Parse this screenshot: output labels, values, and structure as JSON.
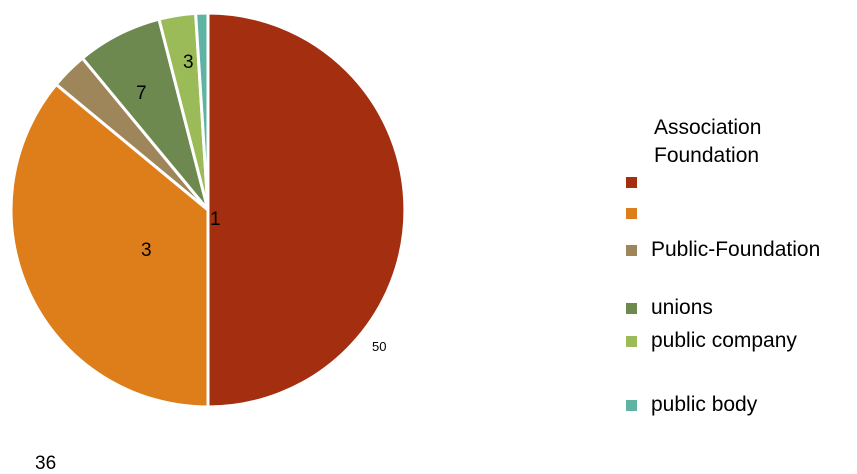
{
  "chart_data": {
    "type": "pie",
    "categories": [
      "",
      "",
      "Public-Foundation",
      "unions",
      "public company",
      "public body"
    ],
    "values": [
      50,
      36,
      3,
      7,
      3,
      1
    ],
    "colors": [
      "#a42e10",
      "#dd7e1a",
      "#9f855a",
      "#6e8950",
      "#9bbb59",
      "#5fb3a3"
    ],
    "legend_header": [
      "Association",
      "Foundation"
    ],
    "data_labels": [
      "50",
      "3",
      "7",
      "3",
      "1",
      "36"
    ],
    "legend_position": "right"
  }
}
